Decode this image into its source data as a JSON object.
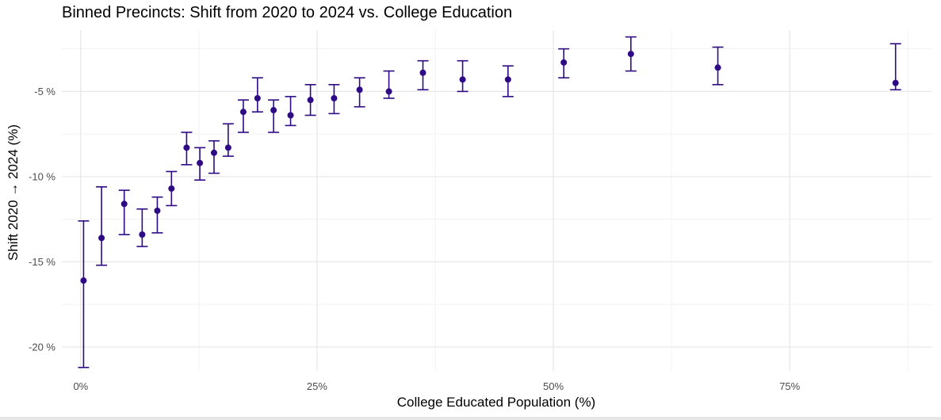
{
  "chart_data": {
    "type": "scatter",
    "title": "Binned Precincts: Shift from 2020 to 2024 vs. College Education",
    "xlabel": "College Educated Population (%)",
    "ylabel": "Shift 2020 → 2024 (%)",
    "xlim": [
      -0.02,
      0.9
    ],
    "ylim": [
      -21.4,
      -1.4
    ],
    "x_ticks": [
      {
        "value": 0.0,
        "label": "0%"
      },
      {
        "value": 0.25,
        "label": "25%"
      },
      {
        "value": 0.5,
        "label": "50%"
      },
      {
        "value": 0.75,
        "label": "75%"
      }
    ],
    "x_minor_ticks": [
      0.125,
      0.375,
      0.625,
      0.875
    ],
    "y_ticks": [
      {
        "value": -5,
        "label": "-5 %"
      },
      {
        "value": -10,
        "label": "-10 %"
      },
      {
        "value": -15,
        "label": "-15 %"
      },
      {
        "value": -20,
        "label": "-20 %"
      }
    ],
    "y_minor_ticks": [
      -2.5,
      -7.5,
      -12.5,
      -17.5
    ],
    "grid": true,
    "color": "#2e0a85",
    "points": [
      {
        "x": 0.003,
        "y": -16.1,
        "ymin": -21.2,
        "ymax": -12.6
      },
      {
        "x": 0.022,
        "y": -13.6,
        "ymin": -15.2,
        "ymax": -10.6
      },
      {
        "x": 0.046,
        "y": -11.6,
        "ymin": -13.4,
        "ymax": -10.8
      },
      {
        "x": 0.065,
        "y": -13.4,
        "ymin": -14.1,
        "ymax": -11.9
      },
      {
        "x": 0.081,
        "y": -12.0,
        "ymin": -13.3,
        "ymax": -11.2
      },
      {
        "x": 0.096,
        "y": -10.7,
        "ymin": -11.7,
        "ymax": -9.7
      },
      {
        "x": 0.112,
        "y": -8.3,
        "ymin": -9.3,
        "ymax": -7.4
      },
      {
        "x": 0.126,
        "y": -9.2,
        "ymin": -10.2,
        "ymax": -8.3
      },
      {
        "x": 0.141,
        "y": -8.6,
        "ymin": -9.8,
        "ymax": -7.9
      },
      {
        "x": 0.156,
        "y": -8.3,
        "ymin": -8.8,
        "ymax": -6.9
      },
      {
        "x": 0.172,
        "y": -6.2,
        "ymin": -7.4,
        "ymax": -5.5
      },
      {
        "x": 0.187,
        "y": -5.4,
        "ymin": -6.2,
        "ymax": -4.2
      },
      {
        "x": 0.204,
        "y": -6.1,
        "ymin": -7.4,
        "ymax": -5.5
      },
      {
        "x": 0.222,
        "y": -6.4,
        "ymin": -7.0,
        "ymax": -5.3
      },
      {
        "x": 0.243,
        "y": -5.5,
        "ymin": -6.4,
        "ymax": -4.6
      },
      {
        "x": 0.268,
        "y": -5.4,
        "ymin": -6.3,
        "ymax": -4.6
      },
      {
        "x": 0.295,
        "y": -4.9,
        "ymin": -5.9,
        "ymax": -4.2
      },
      {
        "x": 0.326,
        "y": -5.0,
        "ymin": -5.4,
        "ymax": -3.8
      },
      {
        "x": 0.362,
        "y": -3.9,
        "ymin": -4.9,
        "ymax": -3.2
      },
      {
        "x": 0.404,
        "y": -4.3,
        "ymin": -5.0,
        "ymax": -3.2
      },
      {
        "x": 0.452,
        "y": -4.3,
        "ymin": -5.3,
        "ymax": -3.5
      },
      {
        "x": 0.511,
        "y": -3.3,
        "ymin": -4.2,
        "ymax": -2.5
      },
      {
        "x": 0.582,
        "y": -2.8,
        "ymin": -3.8,
        "ymax": -1.8
      },
      {
        "x": 0.674,
        "y": -3.6,
        "ymin": -4.6,
        "ymax": -2.4
      },
      {
        "x": 0.862,
        "y": -4.5,
        "ymin": -4.9,
        "ymax": -2.2
      }
    ]
  }
}
